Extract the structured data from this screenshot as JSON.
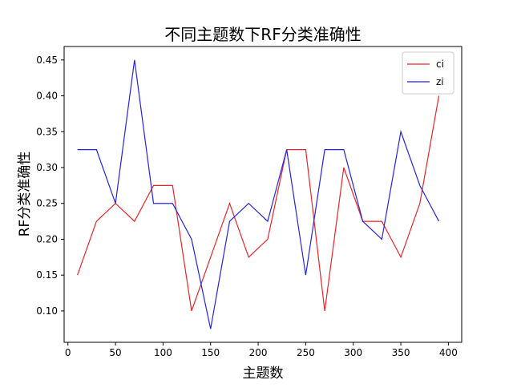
{
  "chart_data": {
    "type": "line",
    "title": "不同主题数下RF分类准确性",
    "xlabel": "主题数",
    "ylabel": "RF分类准确性",
    "xlim": [
      -4,
      414
    ],
    "ylim": [
      0.0563,
      0.4688
    ],
    "xticks": [
      0,
      50,
      100,
      150,
      200,
      250,
      300,
      350,
      400
    ],
    "yticks": [
      0.1,
      0.15,
      0.2,
      0.25,
      0.3,
      0.35,
      0.4,
      0.45
    ],
    "grid": false,
    "legend_position": "top-right",
    "x": [
      10,
      30,
      50,
      70,
      90,
      110,
      130,
      150,
      170,
      190,
      210,
      230,
      250,
      270,
      290,
      310,
      330,
      350,
      370,
      390
    ],
    "series": [
      {
        "name": "ci",
        "color": "#e8252a",
        "values": [
          0.15,
          0.225,
          0.25,
          0.225,
          0.275,
          0.275,
          0.1,
          0.175,
          0.25,
          0.175,
          0.2,
          0.325,
          0.325,
          0.1,
          0.3,
          0.225,
          0.225,
          0.175,
          0.25,
          0.4
        ]
      },
      {
        "name": "zi",
        "color": "#2424e0",
        "values": [
          0.325,
          0.325,
          0.25,
          0.45,
          0.25,
          0.25,
          0.2,
          0.075,
          0.225,
          0.25,
          0.225,
          0.325,
          0.15,
          0.325,
          0.325,
          0.225,
          0.2,
          0.35,
          0.275,
          0.225
        ]
      }
    ]
  }
}
